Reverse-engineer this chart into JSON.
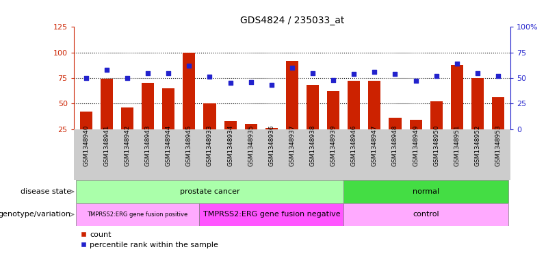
{
  "title": "GDS4824 / 235033_at",
  "samples": [
    "GSM1348940",
    "GSM1348941",
    "GSM1348942",
    "GSM1348943",
    "GSM1348944",
    "GSM1348945",
    "GSM1348933",
    "GSM1348934",
    "GSM1348935",
    "GSM1348936",
    "GSM1348937",
    "GSM1348938",
    "GSM1348939",
    "GSM1348946",
    "GSM1348947",
    "GSM1348948",
    "GSM1348949",
    "GSM1348950",
    "GSM1348951",
    "GSM1348952",
    "GSM1348953"
  ],
  "counts": [
    42,
    74,
    46,
    70,
    65,
    100,
    50,
    33,
    30,
    26,
    92,
    68,
    62,
    72,
    72,
    36,
    34,
    52,
    88,
    75,
    56
  ],
  "percentiles": [
    50,
    58,
    50,
    55,
    55,
    62,
    51,
    45,
    46,
    43,
    60,
    55,
    48,
    54,
    56,
    54,
    47,
    52,
    64,
    55,
    52
  ],
  "disease_state_groups": [
    {
      "label": "prostate cancer",
      "start": 0,
      "end": 12,
      "color": "#AAFFAA"
    },
    {
      "label": "normal",
      "start": 13,
      "end": 20,
      "color": "#44DD44"
    }
  ],
  "genotype_groups": [
    {
      "label": "TMPRSS2:ERG gene fusion positive",
      "start": 0,
      "end": 5,
      "color": "#FFAAFF",
      "fontsize": 6
    },
    {
      "label": "TMPRSS2:ERG gene fusion negative",
      "start": 6,
      "end": 12,
      "color": "#FF55FF",
      "fontsize": 8
    },
    {
      "label": "control",
      "start": 13,
      "end": 20,
      "color": "#FFAAFF",
      "fontsize": 8
    }
  ],
  "bar_color": "#CC2200",
  "dot_color": "#2222CC",
  "ylim_left": [
    25,
    125
  ],
  "ylim_right": [
    0,
    100
  ],
  "yticks_left": [
    25,
    50,
    75,
    100,
    125
  ],
  "yticks_right": [
    0,
    25,
    50,
    75,
    100
  ],
  "ytick_labels_right": [
    "0",
    "25",
    "50",
    "75",
    "100%"
  ],
  "hlines": [
    50,
    75,
    100
  ],
  "title_fontsize": 10,
  "xlabel_fontsize": 7,
  "tick_label_fontsize": 8
}
